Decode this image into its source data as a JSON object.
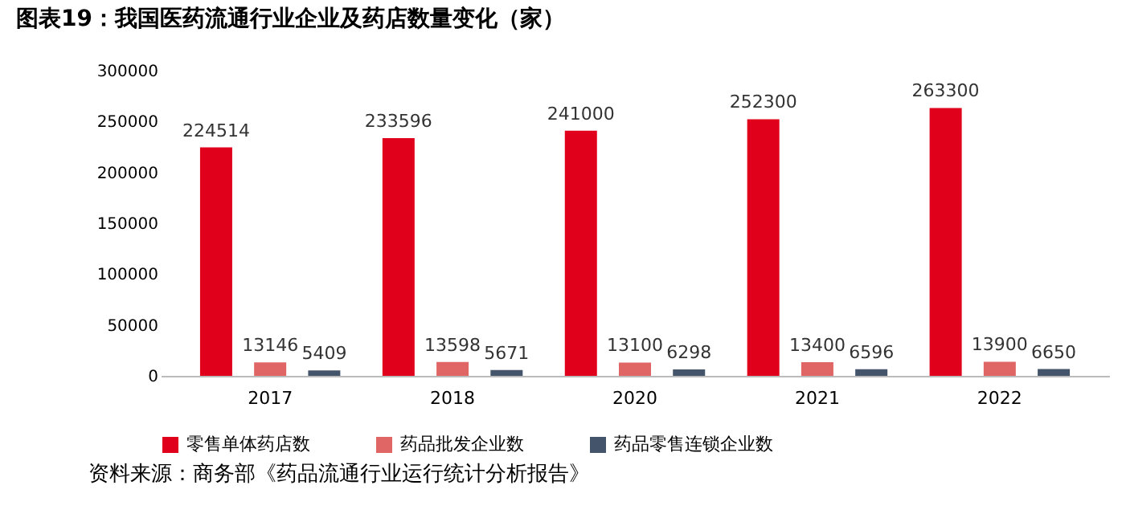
{
  "chart_data": {
    "type": "bar",
    "title": "图表19：我国医药流通行业企业及药店数量变化（家）",
    "categories": [
      "2017",
      "2018",
      "2020",
      "2021",
      "2022"
    ],
    "series": [
      {
        "name": "零售单体药店数",
        "color": "#e0001b",
        "values": [
          224514,
          233596,
          241000,
          252300,
          263300
        ]
      },
      {
        "name": "药品批发企业数",
        "color": "#e06666",
        "values": [
          13146,
          13598,
          13100,
          13400,
          13900
        ]
      },
      {
        "name": "药品零售连锁企业数",
        "color": "#44546a",
        "values": [
          5409,
          5671,
          6298,
          6596,
          6650
        ]
      }
    ],
    "ylim": [
      0,
      300000
    ],
    "yticks": [
      0,
      50000,
      100000,
      150000,
      200000,
      250000,
      300000
    ],
    "grid": false,
    "legend": "bottom",
    "data_labels": true,
    "annotations": [
      "资料来源：商务部《药品流通行业运行统计分析报告》"
    ]
  }
}
